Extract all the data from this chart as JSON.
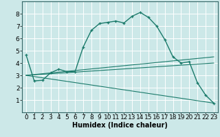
{
  "title": "",
  "xlabel": "Humidex (Indice chaleur)",
  "background_color": "#cce8e8",
  "grid_color": "#ffffff",
  "line_color": "#1a7a6a",
  "xlim": [
    -0.5,
    23.5
  ],
  "ylim": [
    0,
    9
  ],
  "xticks": [
    0,
    1,
    2,
    3,
    4,
    5,
    6,
    7,
    8,
    9,
    10,
    11,
    12,
    13,
    14,
    15,
    16,
    17,
    18,
    19,
    20,
    21,
    22,
    23
  ],
  "yticks": [
    1,
    2,
    3,
    4,
    5,
    6,
    7,
    8
  ],
  "curve1_x": [
    0,
    1,
    2,
    3,
    4,
    5,
    6,
    7,
    8,
    9,
    10,
    11,
    12,
    13,
    14,
    15,
    16,
    17,
    18,
    19,
    20,
    21,
    22,
    23
  ],
  "curve1_y": [
    4.65,
    2.55,
    2.6,
    3.2,
    3.5,
    3.3,
    3.3,
    5.3,
    6.65,
    7.2,
    7.3,
    7.4,
    7.25,
    7.8,
    8.1,
    7.7,
    7.0,
    5.9,
    4.5,
    4.0,
    4.1,
    2.4,
    1.4,
    0.75
  ],
  "line1_x": [
    0,
    23
  ],
  "line1_y": [
    3.0,
    4.5
  ],
  "line2_x": [
    0,
    23
  ],
  "line2_y": [
    3.0,
    4.0
  ],
  "line3_x": [
    0,
    23
  ],
  "line3_y": [
    3.0,
    0.75
  ],
  "xlabel_fontsize": 7,
  "xlabel_fontweight": "bold",
  "tick_fontsize": 6.5,
  "linewidth": 1.0
}
